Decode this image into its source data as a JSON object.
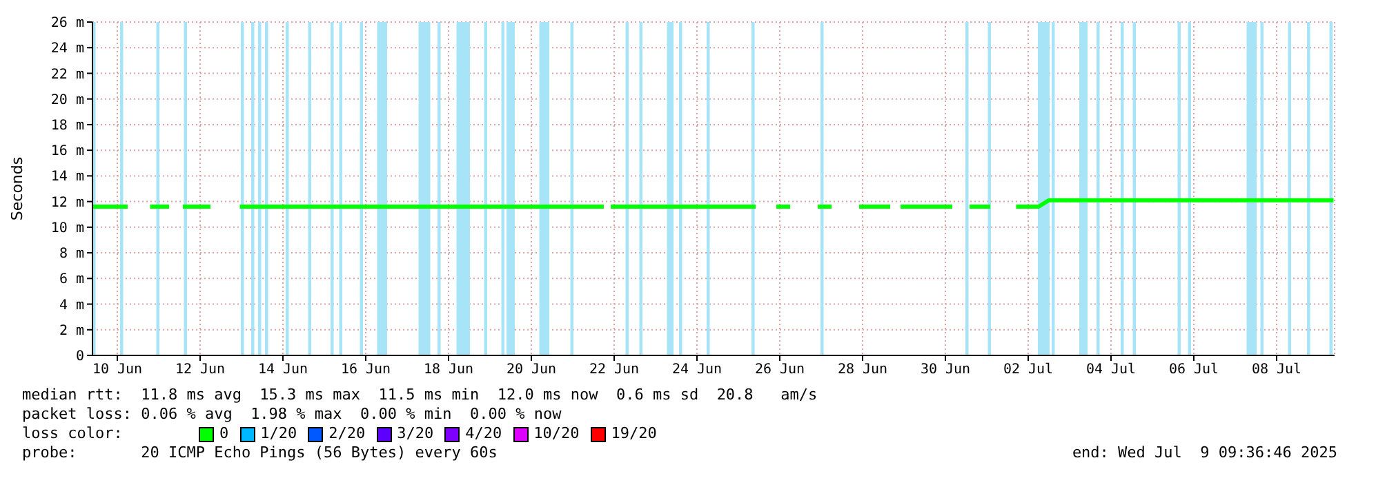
{
  "chart_data": {
    "type": "line",
    "ylabel": "Seconds",
    "legend_title": "loss color:",
    "legend": "bottom",
    "grid": true,
    "marker": "none",
    "line_style": "solid",
    "xlim": [
      "2025-06-09T09:36",
      "2025-07-09T09:36"
    ],
    "xticks": [
      {
        "value": "2025-06-10",
        "label": "10 Jun"
      },
      {
        "value": "2025-06-12",
        "label": "12 Jun"
      },
      {
        "value": "2025-06-14",
        "label": "14 Jun"
      },
      {
        "value": "2025-06-16",
        "label": "16 Jun"
      },
      {
        "value": "2025-06-18",
        "label": "18 Jun"
      },
      {
        "value": "2025-06-20",
        "label": "20 Jun"
      },
      {
        "value": "2025-06-22",
        "label": "22 Jun"
      },
      {
        "value": "2025-06-24",
        "label": "24 Jun"
      },
      {
        "value": "2025-06-26",
        "label": "26 Jun"
      },
      {
        "value": "2025-06-28",
        "label": "28 Jun"
      },
      {
        "value": "2025-06-30",
        "label": "30 Jun"
      },
      {
        "value": "2025-07-02",
        "label": "02 Jul"
      },
      {
        "value": "2025-07-04",
        "label": "04 Jul"
      },
      {
        "value": "2025-07-06",
        "label": "06 Jul"
      },
      {
        "value": "2025-07-08",
        "label": "08 Jul"
      }
    ],
    "ylim": [
      0,
      26
    ],
    "yticks": [
      0,
      {
        "value": 2,
        "label": "2 m"
      },
      {
        "value": 4,
        "label": "4 m"
      },
      {
        "value": 6,
        "label": "6 m"
      },
      {
        "value": 8,
        "label": "8 m"
      },
      {
        "value": 10,
        "label": "10 m"
      },
      {
        "value": 12,
        "label": "12 m"
      },
      {
        "value": 14,
        "label": "14 m"
      },
      {
        "value": 16,
        "label": "16 m"
      },
      {
        "value": 18,
        "label": "18 m"
      },
      {
        "value": 20,
        "label": "20 m"
      },
      {
        "value": 22,
        "label": "22 m"
      },
      {
        "value": 24,
        "label": "24 m"
      },
      {
        "value": 26,
        "label": "26 m"
      }
    ],
    "series": [
      {
        "name": "0",
        "color": "#00ff00",
        "x": [
          "2025-06-09T10:00",
          "2025-06-10T06:00",
          "2025-06-10T12:00",
          "2025-06-10T19:00",
          "2025-06-11T06:00",
          "2025-06-11T09:00",
          "2025-06-11T14:00",
          "2025-06-12T06:00",
          "2025-06-12T12:00",
          "2025-06-12T23:00",
          "2025-06-16T12:00",
          "2025-06-21T18:00",
          "2025-06-21T20:00",
          "2025-06-21T22:00",
          "2025-06-25T10:00",
          "2025-06-25T18:00",
          "2025-06-25T22:00",
          "2025-06-26T06:00",
          "2025-06-26T15:00",
          "2025-06-26T22:00",
          "2025-06-27T06:00",
          "2025-06-27T12:00",
          "2025-06-27T22:00",
          "2025-06-28T16:00",
          "2025-06-28T18:00",
          "2025-06-28T22:00",
          "2025-06-30T04:00",
          "2025-06-30T10:00",
          "2025-06-30T14:00",
          "2025-07-01T02:00",
          "2025-07-01T10:00",
          "2025-07-01T17:00",
          "2025-07-02T06:00",
          "2025-07-02T12:00",
          "2025-07-09T09:00"
        ],
        "values": [
          11.6,
          11.6,
          null,
          11.6,
          11.6,
          null,
          11.6,
          11.6,
          null,
          11.6,
          11.6,
          11.6,
          null,
          11.6,
          11.6,
          null,
          11.6,
          11.6,
          null,
          11.6,
          11.6,
          null,
          11.6,
          11.6,
          null,
          11.6,
          11.6,
          null,
          11.6,
          11.6,
          null,
          11.6,
          11.6,
          12.1,
          12.1
        ]
      },
      {
        "name": "1/20",
        "color": "#00b8ff"
      },
      {
        "name": "2/20",
        "color": "#0059ff"
      },
      {
        "name": "3/20",
        "color": "#5e00ff"
      },
      {
        "name": "4/20",
        "color": "#7e00ff"
      },
      {
        "name": "10/20",
        "color": "#dd00ff"
      },
      {
        "name": "19/20",
        "color": "#ff0000"
      }
    ],
    "bands": [
      {
        "axis": "x",
        "from": "2025-06-09T10:00",
        "to": "2025-06-09T11:00",
        "color": "#a8e4f8"
      },
      {
        "axis": "x",
        "from": "2025-06-10T02:00",
        "to": "2025-06-10T03:00",
        "color": "#a8e4f8"
      },
      {
        "axis": "x",
        "from": "2025-06-10T23:00",
        "to": "2025-06-11T00:00",
        "color": "#a8e4f8"
      },
      {
        "axis": "x",
        "from": "2025-06-11T15:00",
        "to": "2025-06-11T16:00",
        "color": "#a8e4f8"
      },
      {
        "axis": "x",
        "from": "2025-06-13T00:00",
        "to": "2025-06-13T01:00",
        "color": "#a8e4f8"
      },
      {
        "axis": "x",
        "from": "2025-06-13T06:00",
        "to": "2025-06-13T07:00",
        "color": "#a8e4f8"
      },
      {
        "axis": "x",
        "from": "2025-06-13T10:00",
        "to": "2025-06-13T11:00",
        "color": "#a8e4f8"
      },
      {
        "axis": "x",
        "from": "2025-06-13T14:00",
        "to": "2025-06-13T15:00",
        "color": "#a8e4f8"
      },
      {
        "axis": "x",
        "from": "2025-06-14T02:00",
        "to": "2025-06-14T03:00",
        "color": "#a8e4f8"
      },
      {
        "axis": "x",
        "from": "2025-06-14T15:00",
        "to": "2025-06-14T16:00",
        "color": "#a8e4f8"
      },
      {
        "axis": "x",
        "from": "2025-06-15T04:00",
        "to": "2025-06-15T05:00",
        "color": "#a8e4f8"
      },
      {
        "axis": "x",
        "from": "2025-06-15T09:00",
        "to": "2025-06-15T10:00",
        "color": "#a8e4f8"
      },
      {
        "axis": "x",
        "from": "2025-06-15T21:00",
        "to": "2025-06-15T22:00",
        "color": "#a8e4f8"
      },
      {
        "axis": "x",
        "from": "2025-06-16T07:00",
        "to": "2025-06-16T12:00",
        "color": "#a8e4f8"
      },
      {
        "axis": "x",
        "from": "2025-06-17T07:00",
        "to": "2025-06-17T13:00",
        "color": "#a8e4f8"
      },
      {
        "axis": "x",
        "from": "2025-06-17T18:00",
        "to": "2025-06-17T19:00",
        "color": "#a8e4f8"
      },
      {
        "axis": "x",
        "from": "2025-06-18T05:00",
        "to": "2025-06-18T12:00",
        "color": "#a8e4f8"
      },
      {
        "axis": "x",
        "from": "2025-06-18T21:00",
        "to": "2025-06-18T22:00",
        "color": "#a8e4f8"
      },
      {
        "axis": "x",
        "from": "2025-06-19T07:00",
        "to": "2025-06-19T08:00",
        "color": "#a8e4f8"
      },
      {
        "axis": "x",
        "from": "2025-06-19T10:00",
        "to": "2025-06-19T14:00",
        "color": "#a8e4f8"
      },
      {
        "axis": "x",
        "from": "2025-06-20T05:00",
        "to": "2025-06-20T10:00",
        "color": "#a8e4f8"
      },
      {
        "axis": "x",
        "from": "2025-06-20T23:00",
        "to": "2025-06-21T00:00",
        "color": "#a8e4f8"
      },
      {
        "axis": "x",
        "from": "2025-06-22T07:00",
        "to": "2025-06-22T08:00",
        "color": "#a8e4f8"
      },
      {
        "axis": "x",
        "from": "2025-06-22T15:00",
        "to": "2025-06-22T16:00",
        "color": "#a8e4f8"
      },
      {
        "axis": "x",
        "from": "2025-06-23T07:00",
        "to": "2025-06-23T10:00",
        "color": "#a8e4f8"
      },
      {
        "axis": "x",
        "from": "2025-06-23T14:00",
        "to": "2025-06-23T15:00",
        "color": "#a8e4f8"
      },
      {
        "axis": "x",
        "from": "2025-06-24T06:00",
        "to": "2025-06-24T07:00",
        "color": "#a8e4f8"
      },
      {
        "axis": "x",
        "from": "2025-06-25T08:00",
        "to": "2025-06-25T09:00",
        "color": "#a8e4f8"
      },
      {
        "axis": "x",
        "from": "2025-06-27T00:00",
        "to": "2025-06-27T01:00",
        "color": "#a8e4f8"
      },
      {
        "axis": "x",
        "from": "2025-06-30T12:00",
        "to": "2025-06-30T13:00",
        "color": "#a8e4f8"
      },
      {
        "axis": "x",
        "from": "2025-07-01T01:00",
        "to": "2025-07-01T02:00",
        "color": "#a8e4f8"
      },
      {
        "axis": "x",
        "from": "2025-07-02T06:00",
        "to": "2025-07-02T12:00",
        "color": "#a8e4f8"
      },
      {
        "axis": "x",
        "from": "2025-07-02T14:00",
        "to": "2025-07-02T15:00",
        "color": "#a8e4f8"
      },
      {
        "axis": "x",
        "from": "2025-07-03T06:00",
        "to": "2025-07-03T10:00",
        "color": "#a8e4f8"
      },
      {
        "axis": "x",
        "from": "2025-07-03T16:00",
        "to": "2025-07-03T17:00",
        "color": "#a8e4f8"
      },
      {
        "axis": "x",
        "from": "2025-07-04T06:00",
        "to": "2025-07-04T07:00",
        "color": "#a8e4f8"
      },
      {
        "axis": "x",
        "from": "2025-07-04T13:00",
        "to": "2025-07-04T14:00",
        "color": "#a8e4f8"
      },
      {
        "axis": "x",
        "from": "2025-07-05T15:00",
        "to": "2025-07-05T16:00",
        "color": "#a8e4f8"
      },
      {
        "axis": "x",
        "from": "2025-07-05T21:00",
        "to": "2025-07-05T22:00",
        "color": "#a8e4f8"
      },
      {
        "axis": "x",
        "from": "2025-07-07T07:00",
        "to": "2025-07-07T12:00",
        "color": "#a8e4f8"
      },
      {
        "axis": "x",
        "from": "2025-07-07T15:00",
        "to": "2025-07-07T16:00",
        "color": "#a8e4f8"
      },
      {
        "axis": "x",
        "from": "2025-07-08T07:00",
        "to": "2025-07-08T08:00",
        "color": "#a8e4f8"
      },
      {
        "axis": "x",
        "from": "2025-07-08T18:00",
        "to": "2025-07-08T19:00",
        "color": "#a8e4f8"
      },
      {
        "axis": "x",
        "from": "2025-07-09T07:00",
        "to": "2025-07-09T08:00",
        "color": "#a8e4f8"
      }
    ],
    "annotations": [
      "median rtt:  11.8 ms avg  15.3 ms max  11.5 ms min  12.0 ms now  0.6 ms sd  20.8   am/s",
      "packet loss: 0.06 % avg  1.98 % max  0.00 % min  0.00 % now",
      "probe:       20 ICMP Echo Pings (56 Bytes) every 60s",
      "end: Wed Jul  9 09:36:46 2025"
    ]
  }
}
